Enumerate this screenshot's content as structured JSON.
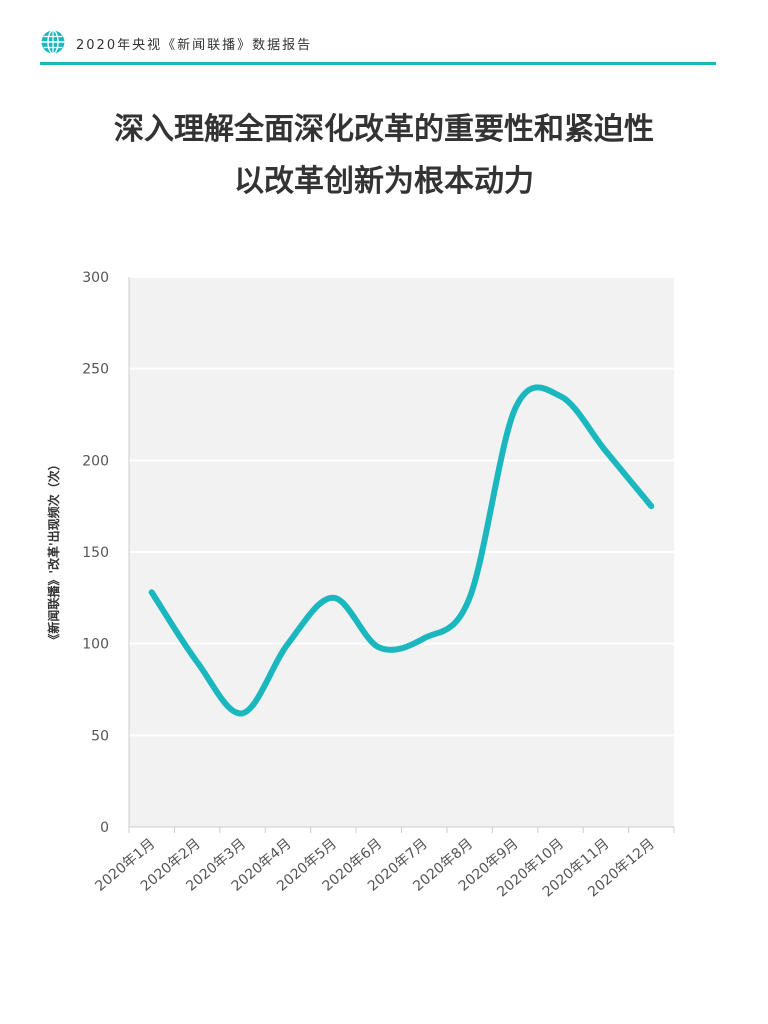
{
  "header": {
    "text": "2020年央视《新闻联播》数据报告",
    "icon": "globe-icon",
    "accent_color": "#1ab8be"
  },
  "title": {
    "line1": "深入理解全面深化改革的重要性和紧迫性",
    "line2": "以改革创新为根本动力"
  },
  "chart_data": {
    "type": "line",
    "title": "",
    "xlabel": "",
    "ylabel": "《新闻联播》'改革'出现频次（次）",
    "categories": [
      "2020年1月",
      "2020年2月",
      "2020年3月",
      "2020年4月",
      "2020年5月",
      "2020年6月",
      "2020年7月",
      "2020年8月",
      "2020年9月",
      "2020年10月",
      "2020年11月",
      "2020年12月"
    ],
    "series": [
      {
        "values": [
          128,
          90,
          62,
          100,
          125,
          98,
          103,
          125,
          228,
          235,
          205,
          175
        ],
        "color": "#1ab8be"
      }
    ],
    "ylim": [
      0,
      300
    ],
    "yticks": [
      0,
      50,
      100,
      150,
      200,
      250,
      300
    ],
    "grid": true,
    "smooth": true,
    "background": "#f2f2f2"
  }
}
